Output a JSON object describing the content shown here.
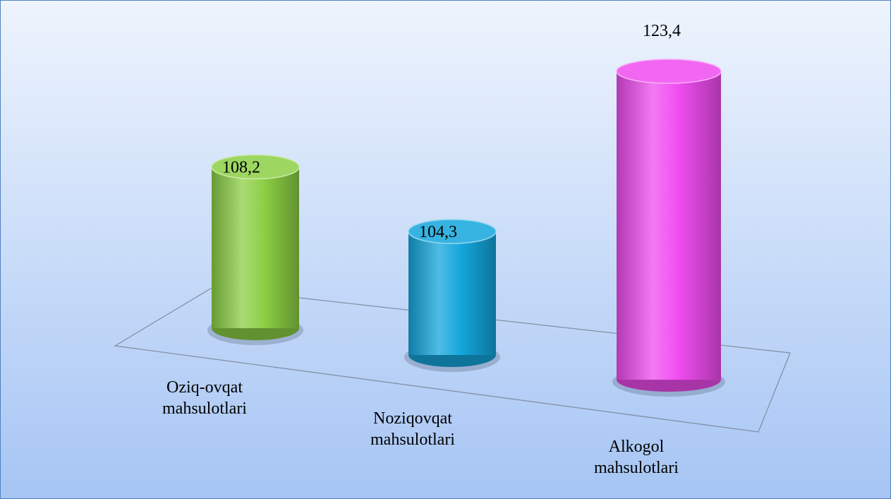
{
  "chart_data": {
    "type": "cylinder_bar",
    "categories": [
      "Oziq-ovqat mahsulotlari",
      "Noziqovqat mahsulotlari",
      "Alkogol mahsulotlari"
    ],
    "values": [
      108.2,
      104.3,
      123.4
    ],
    "value_labels": [
      "108,2",
      "104,3",
      "123,4"
    ],
    "colors": [
      "#8ccf45",
      "#14a6dc",
      "#f04cf0"
    ]
  }
}
